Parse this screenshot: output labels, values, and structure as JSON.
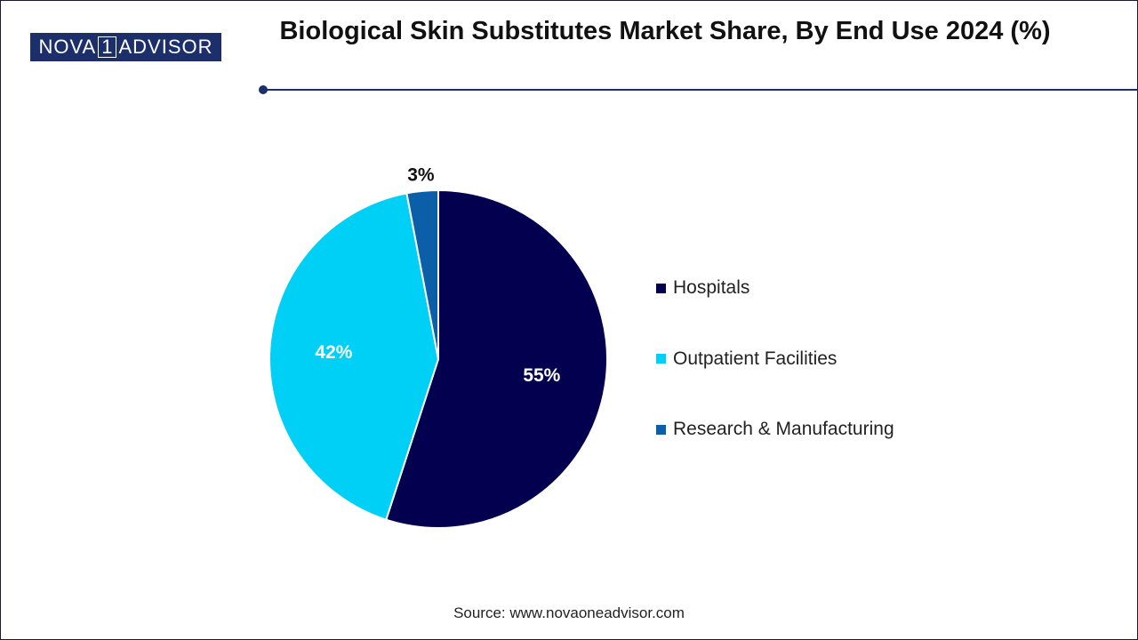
{
  "brand": {
    "logo_left": "NOVA",
    "logo_mid": "1",
    "logo_right": "ADVISOR"
  },
  "title": "Biological Skin Substitutes Market Share, By End Use 2024 (%)",
  "source": "Source: www.novaoneadvisor.com",
  "colors": {
    "hospitals": "#02004f",
    "outpatient": "#00d0f5",
    "research": "#0b5ea8",
    "accent": "#1d2f6b"
  },
  "chart_data": {
    "type": "pie",
    "title": "Biological Skin Substitutes Market Share, By End Use 2024 (%)",
    "categories": [
      "Hospitals",
      "Outpatient Facilities",
      "Research & Manufacturing"
    ],
    "values": [
      55,
      42,
      3
    ],
    "labels": [
      "55%",
      "42%",
      "3%"
    ],
    "colors": [
      "#02004f",
      "#00d0f5",
      "#0b5ea8"
    ],
    "legend_position": "right"
  }
}
